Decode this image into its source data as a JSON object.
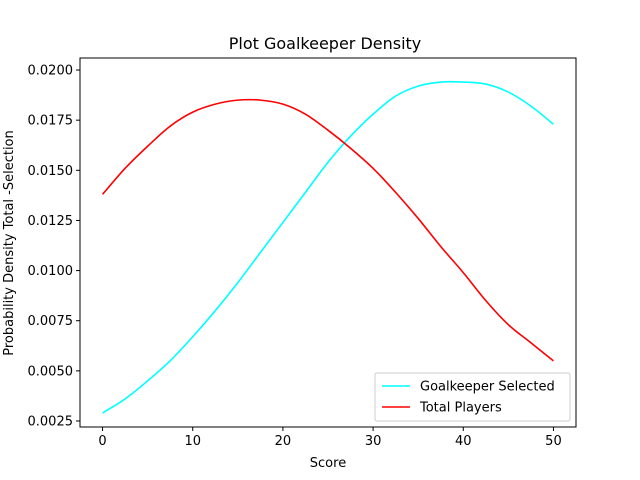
{
  "chart_data": {
    "type": "line",
    "title": "Plot Goalkeeper Density",
    "xlabel": "Score",
    "ylabel": "Probability Density Total -Selection",
    "xlim": [
      -2.5,
      52.5
    ],
    "ylim": [
      0.0022,
      0.0206
    ],
    "xticks": [
      0,
      10,
      20,
      30,
      40,
      50
    ],
    "xtick_labels": [
      "0",
      "10",
      "20",
      "30",
      "40",
      "50"
    ],
    "yticks": [
      0.0025,
      0.005,
      0.0075,
      0.01,
      0.0125,
      0.015,
      0.0175,
      0.02
    ],
    "ytick_labels": [
      "0.0025",
      "0.0050",
      "0.0075",
      "0.0100",
      "0.0125",
      "0.0150",
      "0.0175",
      "0.0200"
    ],
    "grid": false,
    "legend_position": "lower right",
    "series": [
      {
        "name": "Goalkeeper Selected",
        "color": "#00ffff",
        "x": [
          0,
          2.5,
          5,
          7.5,
          10,
          12.5,
          15,
          17.5,
          20,
          22.5,
          25,
          27.5,
          30,
          32.5,
          35,
          37.5,
          40,
          42.5,
          45,
          47.5,
          50
        ],
        "y": [
          0.0029,
          0.0036,
          0.0045,
          0.0055,
          0.0067,
          0.008,
          0.0094,
          0.0109,
          0.0124,
          0.0139,
          0.0154,
          0.0167,
          0.0178,
          0.0187,
          0.0192,
          0.0194,
          0.0194,
          0.0193,
          0.0189,
          0.0182,
          0.0173
        ]
      },
      {
        "name": "Total Players",
        "color": "#ff0000",
        "x": [
          0,
          2.5,
          5,
          7.5,
          10,
          12.5,
          15,
          17.5,
          20,
          22.5,
          25,
          27.5,
          30,
          32.5,
          35,
          37.5,
          40,
          42.5,
          45,
          47.5,
          50
        ],
        "y": [
          0.0138,
          0.0151,
          0.0162,
          0.0172,
          0.0179,
          0.0183,
          0.0185,
          0.0185,
          0.0183,
          0.0178,
          0.017,
          0.0161,
          0.0151,
          0.0139,
          0.0126,
          0.0112,
          0.0099,
          0.0085,
          0.0073,
          0.0064,
          0.0055
        ]
      }
    ]
  }
}
